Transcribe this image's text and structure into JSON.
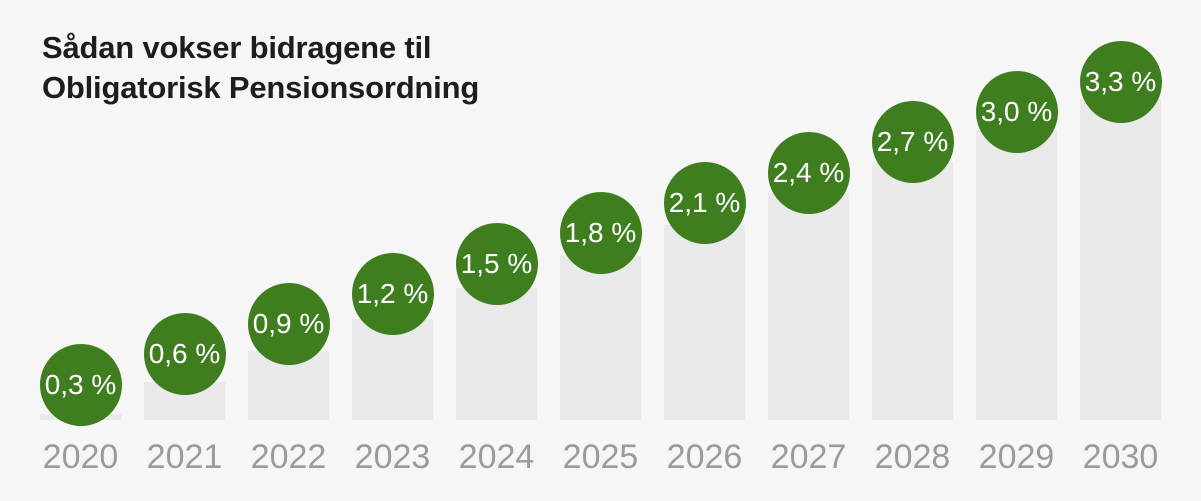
{
  "title": {
    "line1": "Sådan vokser bidragene til",
    "line2": "Obligatorisk Pensionsordning"
  },
  "chart_data": {
    "type": "bar",
    "title": "Sådan vokser bidragene til Obligatorisk Pensionsordning",
    "categories": [
      "2020",
      "2021",
      "2022",
      "2023",
      "2024",
      "2025",
      "2026",
      "2027",
      "2028",
      "2029",
      "2030"
    ],
    "values": [
      0.3,
      0.6,
      0.9,
      1.2,
      1.5,
      1.8,
      2.1,
      2.4,
      2.7,
      3.0,
      3.3
    ],
    "value_labels": [
      "0,3 %",
      "0,6 %",
      "0,9 %",
      "1,2 %",
      "1,5 %",
      "1,8 %",
      "2,1 %",
      "2,4 %",
      "2,7 %",
      "3,0 %",
      "3,3 %"
    ],
    "unit": "%",
    "xlabel": "",
    "ylabel": "",
    "ylim": [
      0,
      3.5
    ],
    "grid": false,
    "legend": "none",
    "annotation_style": "green circular badge above each bar"
  },
  "colors": {
    "background": "#f6f6f6",
    "bar": "#e9e9e9",
    "accent_green": "#3f7e1e",
    "title_text": "#1d1d1b",
    "axis_label": "#9b9b9b",
    "badge_text": "#ffffff"
  }
}
